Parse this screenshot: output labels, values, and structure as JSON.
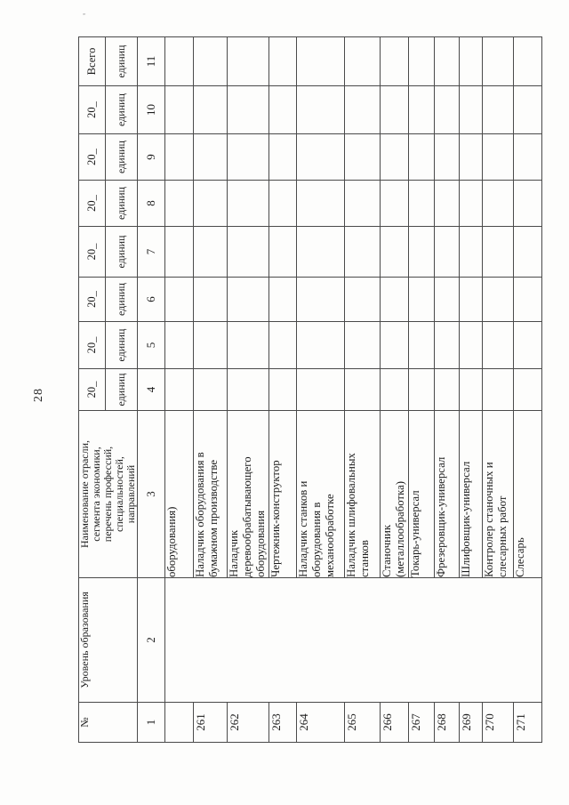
{
  "page": {
    "number": "28",
    "artifact_mark": "'"
  },
  "table": {
    "header": {
      "col_no": "№",
      "col_level": "Уровень образования",
      "col_name": "Наименование отрасли,\nсегмента экономики,\nперечень профессий,\nспециальностей,\nнаправлений",
      "year_label": "20_",
      "unit_label": "единиц",
      "total_label": "Всего",
      "column_numbers": [
        "1",
        "2",
        "3",
        "4",
        "5",
        "6",
        "7",
        "8",
        "9",
        "10",
        "11"
      ]
    },
    "rows": [
      {
        "num": "",
        "name": "оборудования)"
      },
      {
        "num": "261",
        "name": "Наладчик оборудования в\nбумажном производстве"
      },
      {
        "num": "262",
        "name": "Наладчик\nдеревообрабатывающего\nоборудования"
      },
      {
        "num": "263",
        "name": "Чертежник-конструктор"
      },
      {
        "num": "264",
        "name": "Наладчик станков и\nоборудования в\nмеханообработке"
      },
      {
        "num": "265",
        "name": "Наладчик шлифовальных\nстанков"
      },
      {
        "num": "266",
        "name": "Станочник\n(металлообработка)"
      },
      {
        "num": "267",
        "name": "Токарь-универсал"
      },
      {
        "num": "268",
        "name": "Фрезеровщик-универсал"
      },
      {
        "num": "269",
        "name": "Шлифовщик-универсал"
      },
      {
        "num": "270",
        "name": "Контролер станочных и\nслесарных работ"
      },
      {
        "num": "271",
        "name": "Слесарь"
      }
    ]
  }
}
